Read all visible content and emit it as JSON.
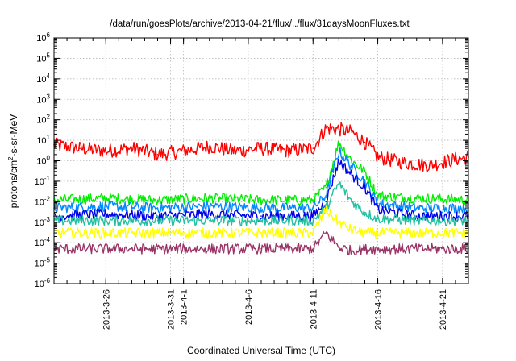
{
  "chart_data": {
    "type": "line",
    "title": "/data/run/goesPlots/archive/2013-04-21/flux/../flux/31daysMoonFluxes.txt",
    "xlabel": "Coordinated Universal Time (UTC)",
    "ylabel": "protons/cm²-s-sr-MeV",
    "ylabel_parts": {
      "base": "protons/cm",
      "sup": "2",
      "rest": "-s-sr-MeV"
    },
    "yscale": "log",
    "ylim_exp": [
      -6,
      6
    ],
    "y_ticks": [
      {
        "base": "10",
        "exp": "-6"
      },
      {
        "base": "10",
        "exp": "-5"
      },
      {
        "base": "10",
        "exp": "-4"
      },
      {
        "base": "10",
        "exp": "-3"
      },
      {
        "base": "10",
        "exp": "-2"
      },
      {
        "base": "10",
        "exp": "-1"
      },
      {
        "base": "10",
        "exp": "0"
      },
      {
        "base": "10",
        "exp": "1"
      },
      {
        "base": "10",
        "exp": "2"
      },
      {
        "base": "10",
        "exp": "3"
      },
      {
        "base": "10",
        "exp": "4"
      },
      {
        "base": "10",
        "exp": "5"
      },
      {
        "base": "10",
        "exp": "6"
      }
    ],
    "xlim": [
      "2013-03-22",
      "2013-04-23"
    ],
    "x_ticks": [
      {
        "value": "2013-03-26",
        "label": "2013-3-26"
      },
      {
        "value": "2013-03-31",
        "label": "2013-3-31"
      },
      {
        "value": "2013-04-01",
        "label": "2013-4-1"
      },
      {
        "value": "2013-04-06",
        "label": "2013-4-6"
      },
      {
        "value": "2013-04-11",
        "label": "2013-4-11"
      },
      {
        "value": "2013-04-16",
        "label": "2013-4-16"
      },
      {
        "value": "2013-04-21",
        "label": "2013-4-21"
      }
    ],
    "grid": true,
    "legend": "none",
    "series": [
      {
        "color": "#ff0000",
        "x": [
          "2013-03-22",
          "2013-03-24",
          "2013-03-26",
          "2013-03-28",
          "2013-03-29",
          "2013-03-30",
          "2013-04-01",
          "2013-04-03",
          "2013-04-05",
          "2013-04-07",
          "2013-04-09",
          "2013-04-11",
          "2013-04-12",
          "2013-04-13",
          "2013-04-14",
          "2013-04-15",
          "2013-04-16",
          "2013-04-18",
          "2013-04-20",
          "2013-04-22",
          "2013-04-23"
        ],
        "y": [
          6,
          4,
          3,
          4,
          3,
          2,
          3,
          5,
          3,
          4,
          3,
          4,
          40,
          35,
          25,
          8,
          1.5,
          0.8,
          0.6,
          1.2,
          1.5
        ]
      },
      {
        "color": "#00ee00",
        "x": [
          "2013-03-22",
          "2013-03-26",
          "2013-03-30",
          "2013-04-03",
          "2013-04-07",
          "2013-04-11",
          "2013-04-12",
          "2013-04-13",
          "2013-04-14",
          "2013-04-15",
          "2013-04-16",
          "2013-04-19",
          "2013-04-23"
        ],
        "y": [
          0.012,
          0.015,
          0.012,
          0.015,
          0.012,
          0.012,
          0.05,
          8,
          1,
          0.3,
          0.02,
          0.015,
          0.012
        ]
      },
      {
        "color": "#0088ff",
        "x": [
          "2013-03-22",
          "2013-03-26",
          "2013-03-30",
          "2013-04-03",
          "2013-04-07",
          "2013-04-11",
          "2013-04-12",
          "2013-04-13",
          "2013-04-14",
          "2013-04-15",
          "2013-04-16",
          "2013-04-19",
          "2013-04-23"
        ],
        "y": [
          0.005,
          0.006,
          0.005,
          0.006,
          0.005,
          0.005,
          0.02,
          3,
          0.5,
          0.1,
          0.008,
          0.005,
          0.005
        ]
      },
      {
        "color": "#0000ee",
        "x": [
          "2013-03-22",
          "2013-03-26",
          "2013-03-30",
          "2013-04-03",
          "2013-04-07",
          "2013-04-11",
          "2013-04-12",
          "2013-04-13",
          "2013-04-14",
          "2013-04-15",
          "2013-04-16",
          "2013-04-19",
          "2013-04-23"
        ],
        "y": [
          0.002,
          0.0025,
          0.002,
          0.0025,
          0.002,
          0.002,
          0.01,
          1,
          0.2,
          0.05,
          0.004,
          0.002,
          0.002
        ]
      },
      {
        "color": "#20c0a0",
        "x": [
          "2013-03-22",
          "2013-03-26",
          "2013-03-30",
          "2013-04-03",
          "2013-04-07",
          "2013-04-11",
          "2013-04-12",
          "2013-04-13",
          "2013-04-14",
          "2013-04-15",
          "2013-04-16",
          "2013-04-19",
          "2013-04-23"
        ],
        "y": [
          0.0012,
          0.0012,
          0.0012,
          0.0012,
          0.0012,
          0.0012,
          0.005,
          0.08,
          0.01,
          0.003,
          0.0015,
          0.0012,
          0.0012
        ]
      },
      {
        "color": "#ffff00",
        "x": [
          "2013-03-22",
          "2013-03-26",
          "2013-03-30",
          "2013-04-03",
          "2013-04-07",
          "2013-04-11",
          "2013-04-12",
          "2013-04-13",
          "2013-04-14",
          "2013-04-15",
          "2013-04-16",
          "2013-04-19",
          "2013-04-23"
        ],
        "y": [
          0.0003,
          0.0003,
          0.0003,
          0.0003,
          0.0003,
          0.0003,
          0.004,
          0.001,
          0.0004,
          0.0003,
          0.0003,
          0.0003,
          0.0003
        ]
      },
      {
        "color": "#993366",
        "x": [
          "2013-03-22",
          "2013-03-26",
          "2013-03-30",
          "2013-04-03",
          "2013-04-07",
          "2013-04-11",
          "2013-04-12",
          "2013-04-13",
          "2013-04-14",
          "2013-04-15",
          "2013-04-16",
          "2013-04-19",
          "2013-04-23"
        ],
        "y": [
          5e-05,
          5e-05,
          5e-05,
          5e-05,
          5e-05,
          5e-05,
          0.0003,
          6e-05,
          4e-05,
          5e-05,
          5e-05,
          5e-05,
          5e-05
        ]
      }
    ]
  }
}
